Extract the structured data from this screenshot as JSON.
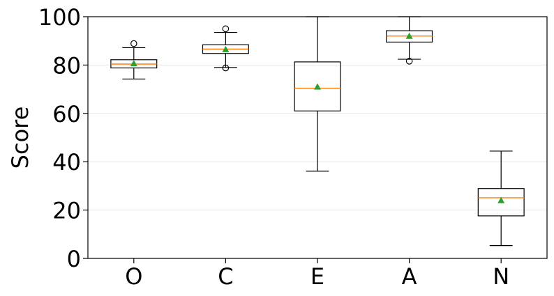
{
  "chart_data": {
    "type": "box",
    "title": "",
    "xlabel": "",
    "ylabel": "Score",
    "ylim": [
      0,
      100
    ],
    "yticks": [
      0,
      20,
      40,
      60,
      80,
      100
    ],
    "grid": "horizontal",
    "categories": [
      "O",
      "C",
      "E",
      "A",
      "N"
    ],
    "boxes": [
      {
        "category": "O",
        "whisker_low": 74.2,
        "q1": 78.8,
        "median": 80.4,
        "q3": 82.2,
        "whisker_high": 87.2,
        "mean": 80.7,
        "outliers": [
          88.9
        ]
      },
      {
        "category": "C",
        "whisker_low": 79.0,
        "q1": 84.8,
        "median": 86.6,
        "q3": 88.4,
        "whisker_high": 93.5,
        "mean": 86.5,
        "outliers": [
          95.0,
          78.8
        ]
      },
      {
        "category": "E",
        "whisker_low": 36.1,
        "q1": 61.0,
        "median": 70.4,
        "q3": 81.3,
        "whisker_high": 100,
        "mean": 71.0,
        "outliers": []
      },
      {
        "category": "A",
        "whisker_low": 82.4,
        "q1": 89.5,
        "median": 92.0,
        "q3": 94.2,
        "whisker_high": 100,
        "mean": 92.0,
        "outliers": [
          81.6
        ]
      },
      {
        "category": "N",
        "whisker_low": 5.3,
        "q1": 17.6,
        "median": 25.1,
        "q3": 28.9,
        "whisker_high": 44.4,
        "mean": 24.0,
        "outliers": []
      }
    ],
    "colors": {
      "box": "#000000",
      "median": "#ff7f0e",
      "mean_marker": "#2ca02c",
      "grid": "#e6e6e6"
    }
  }
}
